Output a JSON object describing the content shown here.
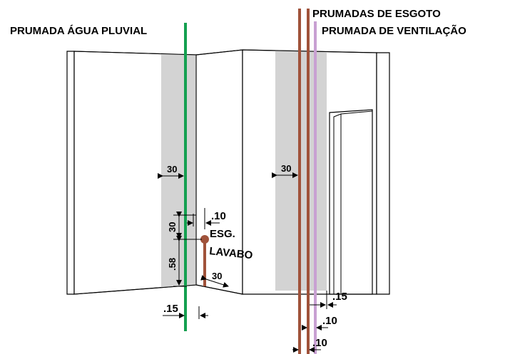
{
  "labels": {
    "pluvial": "PRUMADA ÁGUA PLUVIAL",
    "esgoto": "PRUMADAS DE ESGOTO",
    "ventilacao": "PRUMADA DE VENTILAÇÃO",
    "esg_lavabo_1": "ESG.",
    "esg_lavabo_2": "LAVABO"
  },
  "dimensions": {
    "band_left": "30",
    "band_right": "30",
    "vertical_upper": "30",
    "vertical_lower": ".58",
    "offset_branch": ".10",
    "branch_bottom": "30",
    "pluvial_offset": ".15",
    "esgoto_offset_1": ".15",
    "esgoto_offset_2": ".10",
    "esgoto_offset_3": ".10"
  },
  "colors": {
    "pluvial": "#14a050",
    "esgoto": "#a0523a",
    "ventilacao": "#c8a0d2",
    "shaft_band": "#d3d3d3"
  }
}
